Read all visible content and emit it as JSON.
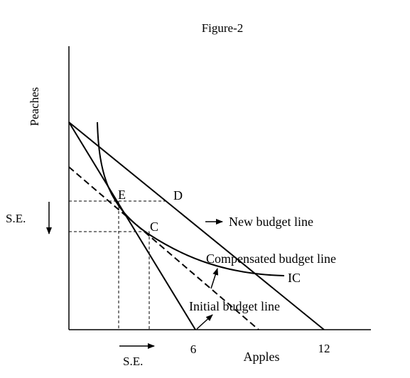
{
  "figure": {
    "title": "Figure-2",
    "y_axis_label": "Peaches",
    "x_axis_label": "Apples",
    "x_tick_6": "6",
    "x_tick_12": "12"
  },
  "points": {
    "e": "E",
    "d": "D",
    "c": "C"
  },
  "curve_labels": {
    "new_budget_line": "New budget line",
    "compensated_budget_line": "Compensated budget line",
    "ic": "IC",
    "initial_budget_line": "Initial budget line"
  },
  "substitution_effect": {
    "vertical_label": "S.E.",
    "horizontal_label": "S.E."
  },
  "colors": {
    "ink": "#000000",
    "background": "#ffffff"
  }
}
